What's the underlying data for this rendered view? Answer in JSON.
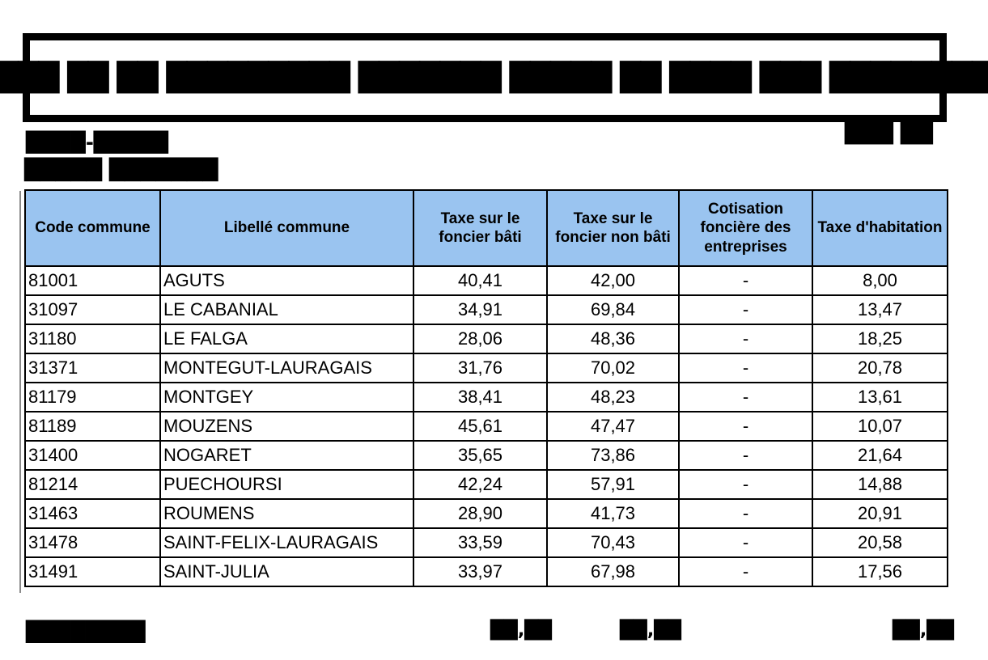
{
  "title_box": {
    "redacted_title": "████ ██ ██ █████████ ███████ █████ ██ ████ ███ ████████"
  },
  "annotations": {
    "top_right_redacted": "███ ██",
    "subtitle_line1_redacted": "████-█████",
    "subtitle_line2_redacted": "█████ ███████",
    "footer_label_redacted": "████████",
    "footer_value1_redacted": "██,██",
    "footer_value2_redacted": "██,██",
    "footer_value3_redacted": "██,██"
  },
  "table": {
    "header_bg": "#9AC4F0",
    "columns": [
      "Code commune",
      "Libellé commune",
      "Taxe sur le foncier bâti",
      "Taxe sur le foncier non bâti",
      "Cotisation foncière des entreprises",
      "Taxe d'habitation"
    ],
    "rows": [
      {
        "code": "81001",
        "name": "AGUTS",
        "foncier_bati": "40,41",
        "foncier_non_bati": "42,00",
        "cfe": "-",
        "taxe_habitation": "8,00"
      },
      {
        "code": "31097",
        "name": "LE CABANIAL",
        "foncier_bati": "34,91",
        "foncier_non_bati": "69,84",
        "cfe": "-",
        "taxe_habitation": "13,47"
      },
      {
        "code": "31180",
        "name": "LE FALGA",
        "foncier_bati": "28,06",
        "foncier_non_bati": "48,36",
        "cfe": "-",
        "taxe_habitation": "18,25"
      },
      {
        "code": "31371",
        "name": "MONTEGUT-LAURAGAIS",
        "foncier_bati": "31,76",
        "foncier_non_bati": "70,02",
        "cfe": "-",
        "taxe_habitation": "20,78"
      },
      {
        "code": "81179",
        "name": "MONTGEY",
        "foncier_bati": "38,41",
        "foncier_non_bati": "48,23",
        "cfe": "-",
        "taxe_habitation": "13,61"
      },
      {
        "code": "81189",
        "name": "MOUZENS",
        "foncier_bati": "45,61",
        "foncier_non_bati": "47,47",
        "cfe": "-",
        "taxe_habitation": "10,07"
      },
      {
        "code": "31400",
        "name": "NOGARET",
        "foncier_bati": "35,65",
        "foncier_non_bati": "73,86",
        "cfe": "-",
        "taxe_habitation": "21,64"
      },
      {
        "code": "81214",
        "name": "PUECHOURSI",
        "foncier_bati": "42,24",
        "foncier_non_bati": "57,91",
        "cfe": "-",
        "taxe_habitation": "14,88"
      },
      {
        "code": "31463",
        "name": "ROUMENS",
        "foncier_bati": "28,90",
        "foncier_non_bati": "41,73",
        "cfe": "-",
        "taxe_habitation": "20,91"
      },
      {
        "code": "31478",
        "name": "SAINT-FELIX-LAURAGAIS",
        "foncier_bati": "33,59",
        "foncier_non_bati": "70,43",
        "cfe": "-",
        "taxe_habitation": "20,58"
      },
      {
        "code": "31491",
        "name": "SAINT-JULIA",
        "foncier_bati": "33,97",
        "foncier_non_bati": "67,98",
        "cfe": "-",
        "taxe_habitation": "17,56"
      }
    ]
  }
}
